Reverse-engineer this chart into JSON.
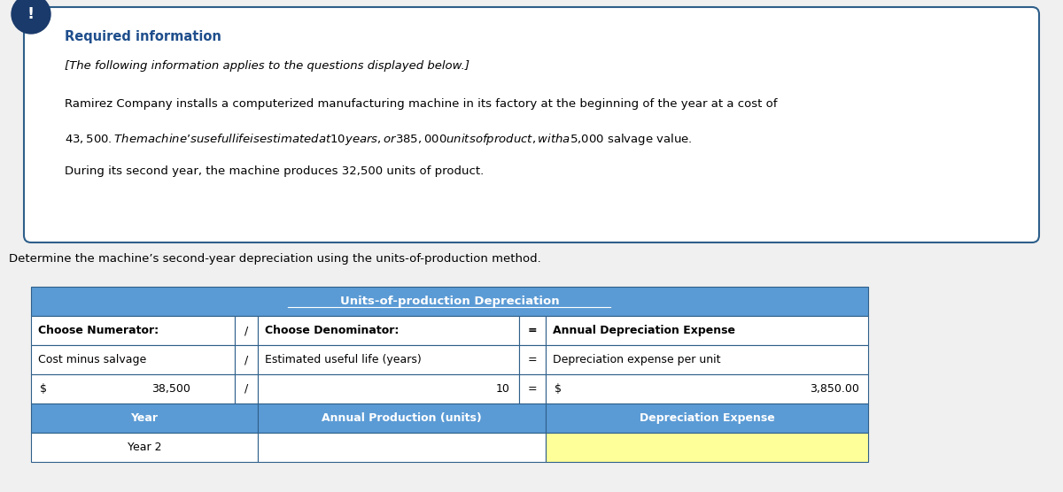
{
  "required_info_title": "Required information",
  "italic_line": "[The following information applies to the questions displayed below.]",
  "body_line1": "Ramirez Company installs a computerized manufacturing machine in its factory at the beginning of the year at a cost of",
  "body_line2": "$43,500. The machine’s useful life is estimated at 10 years, or 385,000 units of product, with a $5,000 salvage value.",
  "body_line3": "During its second year, the machine produces 32,500 units of product.",
  "question_text": "Determine the machine’s second-year depreciation using the units-of-production method.",
  "table_title": "Units-of-production Depreciation",
  "header_bg": "#5b9bd5",
  "header_text_color": "#ffffff",
  "row_bg_white": "#ffffff",
  "row_bg_yellow": "#ffff99",
  "border_color": "#2e5f8a",
  "box_border_color": "#2e5f8a",
  "box_bg": "#ffffff",
  "bg_color": "#f0f0f0",
  "icon_bg": "#1a3a6b",
  "icon_text": "!",
  "required_info_color": "#1f4e8c",
  "body_text_color": "#000000",
  "col1_header": "Choose Numerator:",
  "col_div": "/",
  "col2_header": "Choose Denominator:",
  "col_eq": "=",
  "col3_header": "Annual Depreciation Expense",
  "row2_col1": "Cost minus salvage",
  "row2_col2": "Estimated useful life (years)",
  "row2_col3": "Depreciation expense per unit",
  "row3_col1_prefix": "$",
  "row3_col1_val": "38,500",
  "row3_col2_val": "10",
  "row3_col3_prefix": "$",
  "row3_col3_val": "3,850.00",
  "bottom_col1": "Year",
  "bottom_col2": "Annual Production (units)",
  "bottom_col3": "Depreciation Expense",
  "data_col1": "Year 2",
  "data_col2": "",
  "data_col3": ""
}
